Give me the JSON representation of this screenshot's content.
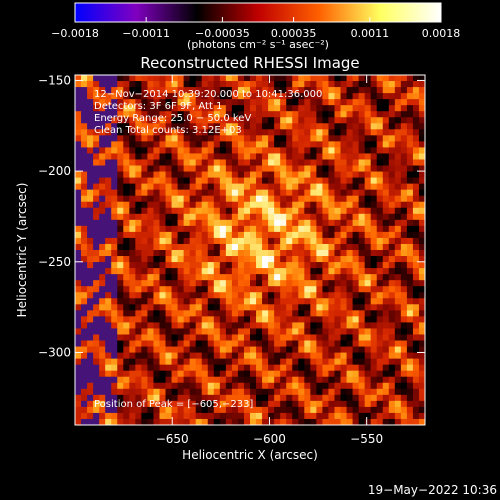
{
  "chart_data": {
    "type": "heatmap",
    "title": "Reconstructed RHESSI Image",
    "xlabel": "Heliocentric X (arcsec)",
    "ylabel": "Heliocentric Y (arcsec)",
    "xlim": [
      -700,
      -520
    ],
    "ylim": [
      -340,
      -147
    ],
    "x_ticks": [
      -650,
      -600,
      -550
    ],
    "x_tick_labels": [
      "−650",
      "−600",
      "−550"
    ],
    "y_ticks": [
      -150,
      -200,
      -250,
      -300
    ],
    "y_tick_labels": [
      "−150",
      "−200",
      "−250",
      "−300"
    ],
    "colorbar": {
      "range": [
        -0.0018,
        0.0018
      ],
      "ticks": [
        -0.0018,
        -0.0011,
        -0.00035,
        0.00035,
        0.0011,
        0.0018
      ],
      "tick_labels": [
        "−0.0018",
        "−0.0011",
        "−0.00035",
        "0.00035",
        "0.0011",
        "0.0018"
      ],
      "units": "(photons cm⁻² s⁻¹ asec⁻²)",
      "colors": [
        "#0000ff",
        "#8000c0",
        "#000000",
        "#c00000",
        "#ff6000",
        "#ffff60",
        "#ffffff"
      ]
    },
    "annotations": [
      "12−Nov−2014 10:39:20.000 to 10:41:36.000",
      "Detectors: 3F 6F 9F, Att 1",
      "Energy Range: 25.0 − 50.0 keV",
      "Clean     Total counts: 3.12E+03"
    ],
    "peak_label": "Position of Peak = [−605,−233]",
    "peak": {
      "x": -605,
      "y": -233
    }
  },
  "footer": {
    "date": "19−May−2022 10:36"
  }
}
